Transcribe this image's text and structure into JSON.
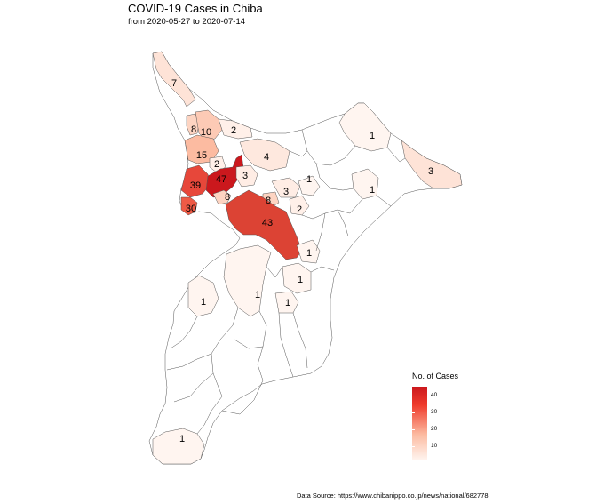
{
  "title": "COVID-19 Cases in Chiba",
  "subtitle": "from 2020-05-27 to  2020-07-14",
  "source": "Data Source: https://www.chibanippo.co.jp/news/national/682778",
  "legend": {
    "title": "No. of Cases",
    "ticks": [
      "40",
      "30",
      "20",
      "10"
    ],
    "colors": {
      "low": "#fff5f0",
      "mid": "#fcbba1",
      "high": "#cb181d"
    }
  },
  "regions": [
    {
      "label": "7",
      "cases": 7
    },
    {
      "label": "8",
      "cases": 8
    },
    {
      "label": "10",
      "cases": 10
    },
    {
      "label": "2",
      "cases": 2
    },
    {
      "label": "15",
      "cases": 15
    },
    {
      "label": "2",
      "cases": 2
    },
    {
      "label": "4",
      "cases": 4
    },
    {
      "label": "39",
      "cases": 39
    },
    {
      "label": "47",
      "cases": 47
    },
    {
      "label": "3",
      "cases": 3
    },
    {
      "label": "8",
      "cases": 8
    },
    {
      "label": "30",
      "cases": 30
    },
    {
      "label": "8",
      "cases": 8
    },
    {
      "label": "3",
      "cases": 3
    },
    {
      "label": "2",
      "cases": 2
    },
    {
      "label": "1",
      "cases": 1
    },
    {
      "label": "43",
      "cases": 43
    },
    {
      "label": "1",
      "cases": 1
    },
    {
      "label": "1",
      "cases": 1
    },
    {
      "label": "1",
      "cases": 1
    },
    {
      "label": "1",
      "cases": 1
    },
    {
      "label": "1",
      "cases": 1
    },
    {
      "label": "1",
      "cases": 1
    },
    {
      "label": "1",
      "cases": 1
    },
    {
      "label": "3",
      "cases": 3
    },
    {
      "label": "1",
      "cases": 1
    }
  ]
}
